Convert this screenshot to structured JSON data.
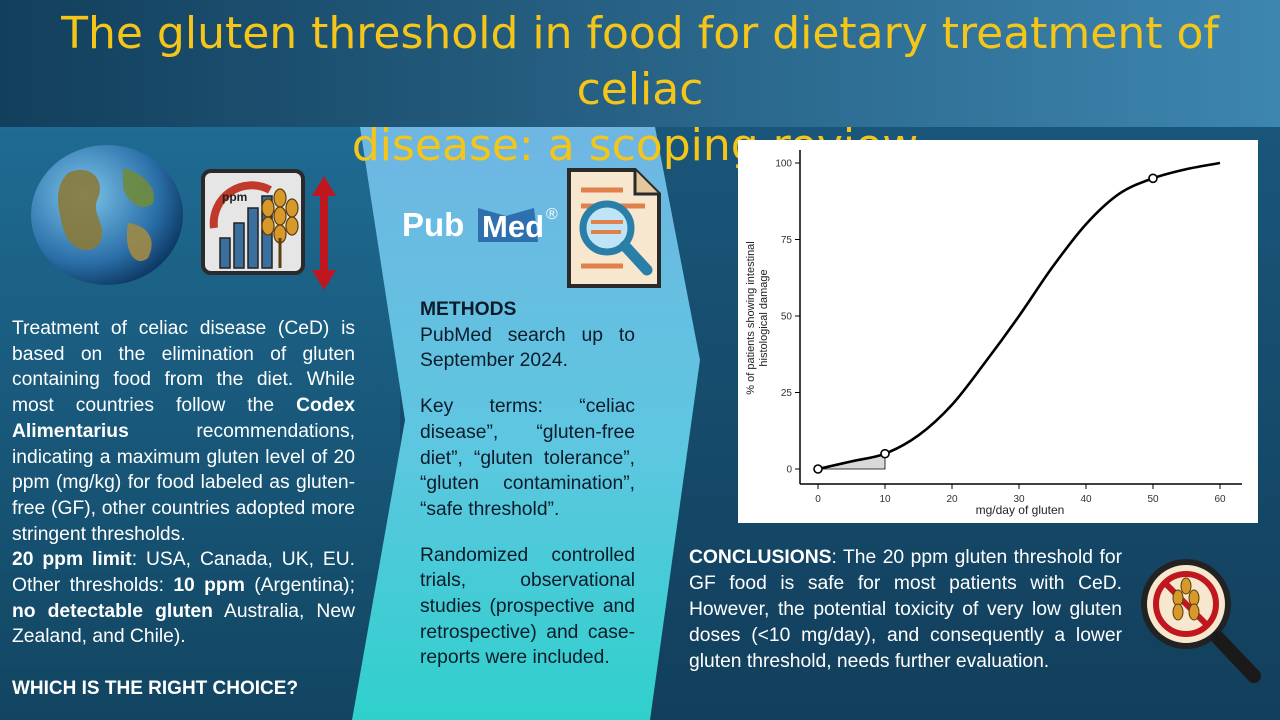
{
  "title": {
    "line1": "The gluten threshold in food for dietary treatment of celiac",
    "line2": "disease: a scoping review."
  },
  "intro": {
    "p1": "Treatment of celiac disease (CeD) is based on the elimination of gluten containing food from the diet. While most countries follow the ",
    "codex": "Codex Alimentarius",
    "p2": " recommendations, indicating a maximum gluten level of 20 ppm (mg/kg) for food labeled as gluten-free (GF), other countries adopted more stringent thresholds.",
    "limit_label": "20 ppm limit",
    "limit_text": ": USA, Canada, UK, EU. Other thresholds: ",
    "ten_ppm": "10 ppm",
    "ten_text": " (Argentina); ",
    "no_detect": "no detectable gluten",
    "no_detect_text": " Australia, New Zealand, and Chile).",
    "question": "WHICH IS THE RIGHT CHOICE?"
  },
  "icons": {
    "globe": "globe-icon",
    "gauge_label": "ppm",
    "gauge": "ppm-gauge-wheat-icon",
    "arrow": "double-arrow-icon",
    "pubmed_logo": {
      "pub": "Pub",
      "med": "Med",
      "reg": "®"
    },
    "document": "document-magnifier-icon",
    "no_gluten": "no-gluten-magnifier-icon"
  },
  "methods": {
    "heading": "METHODS",
    "search": "PubMed search up to September 2024.",
    "terms": "Key terms: “celiac disease”, “gluten-free diet”, “gluten tolerance”, “gluten contamination”, “safe threshold”.",
    "designs": "Randomized controlled trials, observational studies (prospective and retrospective) and case-reports were included."
  },
  "conclusions": {
    "heading": "CONCLUSIONS",
    "text": ": The 20 ppm gluten threshold for GF food is safe for most patients with CeD. However, the potential toxicity of very low gluten doses (<10 mg/day), and consequently a lower gluten threshold, needs further evaluation."
  },
  "chart_data": {
    "type": "line",
    "xlabel": "mg/day of gluten",
    "ylabel_line1": "% of patients showing intestinal",
    "ylabel_line2": "histological damage",
    "xlim": [
      0,
      60
    ],
    "ylim": [
      0,
      100
    ],
    "x_ticks": [
      0,
      10,
      20,
      30,
      40,
      50,
      60
    ],
    "y_ticks": [
      0,
      25,
      50,
      75,
      100
    ],
    "x": [
      0,
      5,
      10,
      15,
      20,
      25,
      30,
      35,
      40,
      45,
      50,
      55,
      60
    ],
    "y": [
      0,
      2.5,
      5,
      11,
      21,
      35,
      50,
      66,
      80,
      90,
      95,
      98,
      100
    ],
    "markers": [
      {
        "x": 0,
        "y": 0
      },
      {
        "x": 10,
        "y": 5
      },
      {
        "x": 50,
        "y": 95
      }
    ],
    "shaded_range": [
      0,
      10
    ],
    "grid": false,
    "colors": {
      "line": "#000000",
      "shade": "#d9d9d9"
    }
  }
}
